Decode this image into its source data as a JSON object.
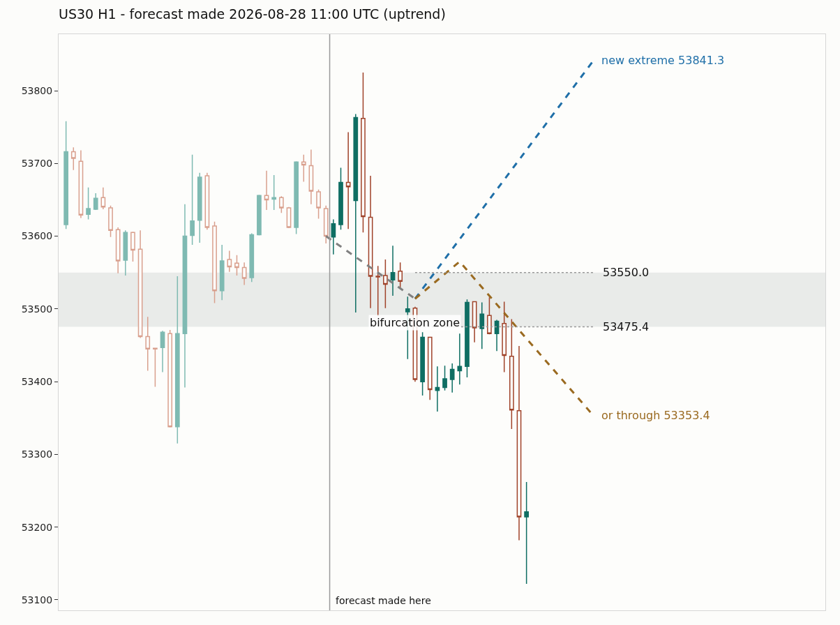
{
  "chart_data": {
    "type": "candlestick",
    "title": "US30 H1 - forecast made 2026-08-28 11:00 UTC (uptrend)",
    "categories": [
      null,
      null,
      null,
      null,
      null,
      null,
      null,
      null,
      null,
      null,
      null,
      null,
      null,
      null,
      null,
      null,
      null,
      null,
      null,
      null,
      null,
      null,
      null,
      null,
      null,
      null,
      null,
      null,
      null,
      null,
      null,
      null,
      null,
      null,
      null,
      null,
      null,
      null,
      null,
      null,
      null,
      null,
      null,
      null,
      null,
      null,
      null,
      null,
      null,
      null,
      null,
      null,
      null,
      null,
      null,
      null,
      null,
      null,
      null,
      null,
      null,
      null,
      null,
      null,
      null,
      null,
      null,
      null,
      null,
      null,
      null,
      null
    ],
    "ylim": [
      53085.6,
      53877.7
    ],
    "yticks": [
      53100,
      53200,
      53300,
      53400,
      53500,
      53600,
      53700,
      53800
    ],
    "tick_labels": "y",
    "grid": false,
    "legend": false,
    "series": [
      {
        "colors": [
          "#7fbab2",
          "#d9a08e",
          "#d9a08e",
          "#7fbab2",
          "#7fbab2",
          "#d9a08e",
          "#d9a08e",
          "#d9a08e",
          "#7fbab2",
          "#d9a08e",
          "#d9a08e",
          "#d9a08e",
          "#d9a08e",
          "#7fbab2",
          "#d9a08e",
          "#7fbab2",
          "#7fbab2",
          "#7fbab2",
          "#7fbab2",
          "#d9a08e",
          "#d9a08e",
          "#7fbab2",
          "#d9a08e",
          "#d9a08e",
          "#d9a08e",
          "#7fbab2",
          "#7fbab2",
          "#d9a08e",
          "#7fbab2",
          "#d9a08e",
          "#d9a08e",
          "#7fbab2",
          "#d9a08e",
          "#d9a08e",
          "#d9a08e",
          "#d9a08e",
          null,
          null,
          null,
          null,
          null,
          null,
          null,
          null,
          null,
          null,
          null,
          null,
          null,
          null,
          null,
          null,
          null,
          null,
          null,
          null,
          null,
          null,
          null,
          null,
          null,
          null,
          null,
          null,
          null,
          null,
          null,
          null,
          null,
          null,
          null,
          null
        ],
        "ohlc": [
          [
            53616,
            53758,
            53610,
            53716
          ],
          [
            53716,
            53722,
            53691,
            53707
          ],
          [
            53703,
            53718,
            53625,
            53629
          ],
          [
            53630,
            53667,
            53623,
            53638
          ],
          [
            53637,
            53659,
            53636,
            53652
          ],
          [
            53653,
            53667,
            53637,
            53640
          ],
          [
            53639,
            53642,
            53599,
            53608
          ],
          [
            53609,
            53612,
            53549,
            53566
          ],
          [
            53567,
            53608,
            53546,
            53605
          ],
          [
            53605,
            53606,
            53565,
            53581
          ],
          [
            53582,
            53608,
            53460,
            53462
          ],
          [
            53462,
            53489,
            53415,
            53445
          ],
          [
            53446,
            53446,
            53393,
            53445
          ],
          [
            53447,
            53470,
            53413,
            53468
          ],
          [
            53466,
            53471,
            53337,
            53338
          ],
          [
            53338,
            53545,
            53315,
            53466
          ],
          [
            53466,
            53644,
            53392,
            53600
          ],
          [
            53601,
            53712,
            53588,
            53621
          ],
          [
            53622,
            53687,
            53591,
            53681
          ],
          [
            53683,
            53687,
            53609,
            53612
          ],
          [
            53614,
            53620,
            53508,
            53525
          ],
          [
            53525,
            53588,
            53512,
            53566
          ],
          [
            53568,
            53580,
            53551,
            53558
          ],
          [
            53563,
            53574,
            53546,
            53557
          ],
          [
            53557,
            53564,
            53533,
            53542
          ],
          [
            53543,
            53604,
            53537,
            53602
          ],
          [
            53602,
            53657,
            53601,
            53656
          ],
          [
            53656,
            53690,
            53636,
            53650
          ],
          [
            53651,
            53684,
            53636,
            53653
          ],
          [
            53653,
            53655,
            53632,
            53639
          ],
          [
            53639,
            53640,
            53611,
            53612
          ],
          [
            53612,
            53703,
            53603,
            53702
          ],
          [
            53702,
            53712,
            53675,
            53698
          ],
          [
            53697,
            53719,
            53644,
            53662
          ],
          [
            53661,
            53664,
            53624,
            53639
          ],
          [
            53638,
            53642,
            53590,
            53600
          ],
          null,
          null,
          null,
          null,
          null,
          null,
          null,
          null,
          null,
          null,
          null,
          null,
          null,
          null,
          null,
          null,
          null,
          null,
          null,
          null,
          null,
          null,
          null,
          null,
          null,
          null,
          null,
          null,
          null,
          null,
          null,
          null,
          null,
          null,
          null,
          null
        ]
      },
      {
        "colors": [
          null,
          null,
          null,
          null,
          null,
          null,
          null,
          null,
          null,
          null,
          null,
          null,
          null,
          null,
          null,
          null,
          null,
          null,
          null,
          null,
          null,
          null,
          null,
          null,
          null,
          null,
          null,
          null,
          null,
          null,
          null,
          null,
          null,
          null,
          null,
          null,
          "#0f6e63",
          "#0f6e63",
          "#a0432a",
          "#0f6e63",
          "#a0432a",
          "#a0432a",
          "#a0432a",
          "#a0432a",
          "#0f6e63",
          "#a0432a",
          "#0f6e63",
          "#a0432a",
          "#0f6e63",
          "#a0432a",
          "#0f6e63",
          "#0f6e63",
          "#0f6e63",
          "#0f6e63",
          "#0f6e63",
          "#a0432a",
          "#0f6e63",
          "#a0432a",
          "#0f6e63",
          "#a0432a",
          "#a0432a",
          "#a0432a",
          "#0f6e63",
          null,
          null,
          null,
          null,
          null,
          null,
          null,
          null,
          null
        ],
        "ohlc": [
          null,
          null,
          null,
          null,
          null,
          null,
          null,
          null,
          null,
          null,
          null,
          null,
          null,
          null,
          null,
          null,
          null,
          null,
          null,
          null,
          null,
          null,
          null,
          null,
          null,
          null,
          null,
          null,
          null,
          null,
          null,
          null,
          null,
          null,
          null,
          null,
          [
            53599,
            53623,
            53575,
            53617
          ],
          [
            53616,
            53694,
            53609,
            53674
          ],
          [
            53674,
            53743,
            53610,
            53668
          ],
          [
            53649,
            53768,
            53495,
            53763
          ],
          [
            53762,
            53825,
            53605,
            53627
          ],
          [
            53626,
            53683,
            53501,
            53545
          ],
          [
            53545,
            53559,
            53490,
            53544
          ],
          [
            53546,
            53568,
            53501,
            53534
          ],
          [
            53540,
            53587,
            53518,
            53550
          ],
          [
            53552,
            53564,
            53527,
            53538
          ],
          [
            53496,
            53517,
            53431,
            53500
          ],
          [
            53501,
            53503,
            53400,
            53403
          ],
          [
            53400,
            53468,
            53381,
            53461
          ],
          [
            53461,
            53461,
            53375,
            53389
          ],
          [
            53388,
            53421,
            53359,
            53392
          ],
          [
            53392,
            53422,
            53388,
            53404
          ],
          [
            53403,
            53425,
            53385,
            53417
          ],
          [
            53415,
            53466,
            53396,
            53421
          ],
          [
            53421,
            53513,
            53406,
            53509
          ],
          [
            53510,
            53510,
            53454,
            53474
          ],
          [
            53473,
            53509,
            53445,
            53493
          ],
          [
            53491,
            53516,
            53465,
            53466
          ],
          [
            53466,
            53485,
            53442,
            53483
          ],
          [
            53480,
            53510,
            53413,
            53436
          ],
          [
            53435,
            53486,
            53335,
            53361
          ],
          [
            53360,
            53449,
            53182,
            53214
          ],
          [
            53214,
            53262,
            53122,
            53221
          ],
          null,
          null,
          null,
          null,
          null,
          null,
          null,
          null,
          null
        ]
      },
      {
        "type": "line",
        "color": "#808080",
        "line_style": "dashed",
        "marker": "none",
        "values": [
          null,
          null,
          null,
          null,
          null,
          null,
          null,
          null,
          null,
          null,
          null,
          null,
          null,
          null,
          null,
          null,
          null,
          null,
          null,
          null,
          null,
          null,
          null,
          null,
          null,
          null,
          null,
          null,
          null,
          null,
          null,
          null,
          null,
          null,
          null,
          53600,
          null,
          null,
          null,
          null,
          null,
          null,
          null,
          null,
          null,
          null,
          null,
          53514,
          null,
          null,
          null,
          null,
          null,
          null,
          null,
          null,
          null,
          null,
          null,
          null,
          null,
          null,
          null,
          null,
          null,
          null,
          null,
          null,
          null,
          null,
          null,
          null
        ]
      },
      {
        "type": "line",
        "name": "new extreme 53841.3",
        "color": "#1f6fa8",
        "line_style": "dashed",
        "marker": "none",
        "values": [
          null,
          null,
          null,
          null,
          null,
          null,
          null,
          null,
          null,
          null,
          null,
          null,
          null,
          null,
          null,
          null,
          null,
          null,
          null,
          null,
          null,
          null,
          null,
          null,
          null,
          null,
          null,
          null,
          null,
          null,
          null,
          null,
          null,
          null,
          null,
          null,
          null,
          null,
          null,
          null,
          null,
          null,
          null,
          null,
          null,
          null,
          null,
          53514,
          null,
          null,
          null,
          null,
          null,
          null,
          null,
          null,
          null,
          null,
          null,
          null,
          null,
          null,
          null,
          null,
          null,
          null,
          null,
          null,
          null,
          null,
          null,
          53841.3
        ]
      },
      {
        "type": "line",
        "name": "or through 53353.4",
        "color": "#9a6a20",
        "line_style": "dashed",
        "marker": "none",
        "values": [
          null,
          null,
          null,
          null,
          null,
          null,
          null,
          null,
          null,
          null,
          null,
          null,
          null,
          null,
          null,
          null,
          null,
          null,
          null,
          null,
          null,
          null,
          null,
          null,
          null,
          null,
          null,
          null,
          null,
          null,
          null,
          null,
          null,
          null,
          null,
          null,
          null,
          null,
          null,
          null,
          null,
          null,
          null,
          null,
          null,
          null,
          null,
          53514,
          null,
          null,
          null,
          null,
          null,
          53565,
          null,
          null,
          null,
          null,
          null,
          null,
          null,
          null,
          null,
          null,
          null,
          null,
          null,
          null,
          null,
          null,
          null,
          53353.4
        ]
      }
    ],
    "ref_lines": [
      {
        "axis": "y",
        "value": 53550.0,
        "label": "53550.0",
        "color": "#999999",
        "line_style": "dotted"
      },
      {
        "axis": "y",
        "value": 53475.4,
        "label": "53475.4",
        "color": "#999999",
        "line_style": "dotted"
      }
    ],
    "bands": [
      {
        "axis": "y",
        "from": 53475.4,
        "to": 53550.0,
        "label": "bifurcation zone",
        "color": "#e9ebe9"
      }
    ],
    "annotations": [
      "forecast made here"
    ]
  }
}
